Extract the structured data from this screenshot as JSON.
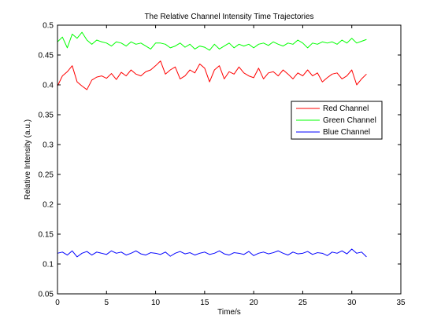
{
  "chart_data": {
    "type": "line",
    "title": "The Relative Channel Intensity Time Trajectories",
    "xlabel": "Time/s",
    "ylabel": "Relative Intensity (a.u.)",
    "xlim": [
      0,
      35
    ],
    "ylim": [
      0.05,
      0.5
    ],
    "xticks": [
      0,
      5,
      10,
      15,
      20,
      25,
      30,
      35
    ],
    "xtick_labels": [
      "0",
      "5",
      "10",
      "15",
      "20",
      "25",
      "30",
      "35"
    ],
    "yticks": [
      0.05,
      0.1,
      0.15,
      0.2,
      0.25,
      0.3,
      0.35,
      0.4,
      0.45,
      0.5
    ],
    "ytick_labels": [
      "0.05",
      "0.1",
      "0.15",
      "0.2",
      "0.25",
      "0.3",
      "0.35",
      "0.4",
      "0.45",
      "0.5"
    ],
    "grid": false,
    "legend": {
      "position": "right",
      "entries": [
        "Red Channel",
        "Green Channel",
        "Blue Channel"
      ]
    },
    "x": [
      0,
      0.5,
      1,
      1.5,
      2,
      2.5,
      3,
      3.5,
      4,
      4.5,
      5,
      5.5,
      6,
      6.5,
      7,
      7.5,
      8,
      8.5,
      9,
      9.5,
      10,
      10.5,
      11,
      11.5,
      12,
      12.5,
      13,
      13.5,
      14,
      14.5,
      15,
      15.5,
      16,
      16.5,
      17,
      17.5,
      18,
      18.5,
      19,
      19.5,
      20,
      20.5,
      21,
      21.5,
      22,
      22.5,
      23,
      23.5,
      24,
      24.5,
      25,
      25.5,
      26,
      26.5,
      27,
      27.5,
      28,
      28.5,
      29,
      29.5,
      30,
      30.5,
      31,
      31.5
    ],
    "series": [
      {
        "name": "Red Channel",
        "color": "#ff0000",
        "values": [
          0.398,
          0.415,
          0.422,
          0.432,
          0.405,
          0.398,
          0.392,
          0.408,
          0.413,
          0.415,
          0.411,
          0.419,
          0.409,
          0.421,
          0.415,
          0.425,
          0.418,
          0.415,
          0.422,
          0.425,
          0.432,
          0.44,
          0.418,
          0.425,
          0.43,
          0.41,
          0.415,
          0.425,
          0.42,
          0.435,
          0.428,
          0.405,
          0.425,
          0.432,
          0.41,
          0.422,
          0.418,
          0.43,
          0.42,
          0.415,
          0.412,
          0.428,
          0.41,
          0.42,
          0.422,
          0.415,
          0.425,
          0.418,
          0.41,
          0.42,
          0.415,
          0.425,
          0.415,
          0.42,
          0.405,
          0.412,
          0.418,
          0.42,
          0.41,
          0.415,
          0.425,
          0.4,
          0.41,
          0.418
        ]
      },
      {
        "name": "Green Channel",
        "color": "#00ff00",
        "values": [
          0.472,
          0.48,
          0.462,
          0.485,
          0.478,
          0.488,
          0.475,
          0.468,
          0.475,
          0.472,
          0.47,
          0.465,
          0.472,
          0.47,
          0.465,
          0.472,
          0.468,
          0.47,
          0.465,
          0.46,
          0.47,
          0.47,
          0.468,
          0.462,
          0.465,
          0.47,
          0.463,
          0.468,
          0.46,
          0.465,
          0.463,
          0.458,
          0.468,
          0.46,
          0.465,
          0.47,
          0.462,
          0.468,
          0.465,
          0.468,
          0.462,
          0.468,
          0.47,
          0.466,
          0.472,
          0.468,
          0.465,
          0.47,
          0.468,
          0.475,
          0.47,
          0.462,
          0.47,
          0.468,
          0.472,
          0.47,
          0.472,
          0.468,
          0.475,
          0.47,
          0.478,
          0.47,
          0.473,
          0.476
        ]
      },
      {
        "name": "Blue Channel",
        "color": "#0000ff",
        "values": [
          0.118,
          0.12,
          0.115,
          0.122,
          0.112,
          0.118,
          0.121,
          0.115,
          0.12,
          0.118,
          0.116,
          0.122,
          0.118,
          0.12,
          0.115,
          0.118,
          0.122,
          0.117,
          0.115,
          0.119,
          0.118,
          0.116,
          0.12,
          0.113,
          0.118,
          0.121,
          0.117,
          0.119,
          0.115,
          0.118,
          0.12,
          0.116,
          0.118,
          0.122,
          0.117,
          0.115,
          0.119,
          0.118,
          0.116,
          0.121,
          0.114,
          0.118,
          0.12,
          0.117,
          0.119,
          0.122,
          0.118,
          0.115,
          0.12,
          0.117,
          0.118,
          0.121,
          0.116,
          0.119,
          0.118,
          0.114,
          0.12,
          0.118,
          0.122,
          0.117,
          0.125,
          0.118,
          0.12,
          0.112
        ]
      }
    ]
  }
}
